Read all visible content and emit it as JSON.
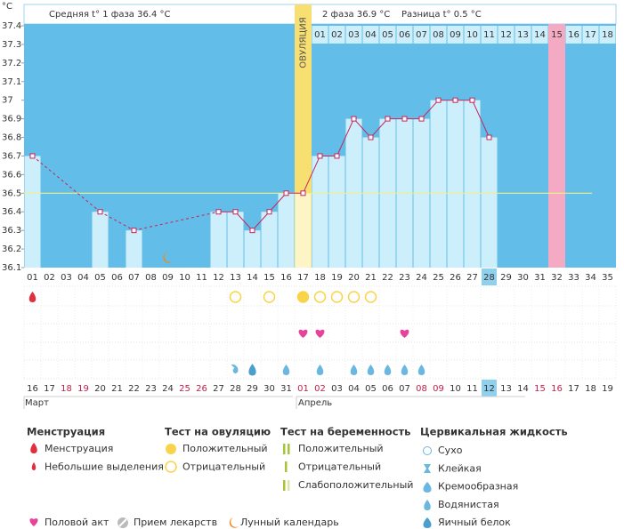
{
  "chart_data": {
    "type": "line",
    "y_unit": "°C",
    "summary": [
      "Средняя t° 1 фаза 36.4 °C",
      "2 фаза 36.9 °C",
      "Разница t° 0.5 °C"
    ],
    "ovulation_label": "ОВУЛЯЦИЯ",
    "categories": [
      "01",
      "02",
      "03",
      "04",
      "05",
      "06",
      "07",
      "08",
      "09",
      "10",
      "11",
      "12",
      "13",
      "14",
      "15",
      "16",
      "17",
      "18",
      "19",
      "20",
      "21",
      "22",
      "23",
      "24",
      "25",
      "26",
      "27",
      "28",
      "29",
      "30",
      "31",
      "32",
      "33",
      "34",
      "35"
    ],
    "phase2_days": [
      "01",
      "02",
      "03",
      "04",
      "05",
      "06",
      "07",
      "08",
      "09",
      "10",
      "11",
      "12",
      "13",
      "14",
      "15",
      "16",
      "17",
      "18"
    ],
    "dates": [
      "16",
      "17",
      "18",
      "19",
      "20",
      "21",
      "22",
      "23",
      "24",
      "25",
      "26",
      "27",
      "28",
      "29",
      "30",
      "31",
      "01",
      "02",
      "03",
      "04",
      "05",
      "06",
      "07",
      "08",
      "09",
      "10",
      "11",
      "12",
      "13",
      "14",
      "15",
      "16",
      "17",
      "18",
      "19"
    ],
    "weekend": [
      false,
      false,
      true,
      true,
      false,
      false,
      false,
      false,
      false,
      true,
      true,
      false,
      false,
      false,
      false,
      false,
      true,
      true,
      false,
      false,
      false,
      false,
      false,
      true,
      true,
      false,
      false,
      false,
      false,
      false,
      true,
      true,
      false,
      false,
      false
    ],
    "months": [
      "Март",
      "Апрель"
    ],
    "values": [
      36.7,
      null,
      null,
      null,
      36.4,
      null,
      36.3,
      null,
      null,
      null,
      null,
      36.4,
      36.4,
      36.3,
      36.4,
      36.5,
      36.5,
      36.7,
      36.7,
      36.9,
      36.8,
      36.9,
      36.9,
      36.9,
      37.0,
      37.0,
      37.0,
      36.8,
      null,
      null,
      null,
      null,
      null,
      null,
      null
    ],
    "color": "#c8245a",
    "coverline": 36.5,
    "ylim": [
      36.1,
      37.4
    ],
    "yticks": [
      36.1,
      36.2,
      36.3,
      36.4,
      36.5,
      36.6,
      36.7,
      36.8,
      36.9,
      37,
      37.1,
      37.2,
      37.3,
      37.4
    ],
    "day_marks": [
      null,
      null,
      null,
      null,
      null,
      null,
      null,
      null,
      "moon",
      null,
      null,
      null,
      null,
      null,
      null,
      null,
      "ovulation",
      null,
      null,
      null,
      null,
      null,
      null,
      null,
      null,
      null,
      null,
      null,
      null,
      null,
      null,
      "period",
      null,
      null,
      null
    ],
    "selected_day": "28",
    "selected_date": "12",
    "bleeding": [
      "heavy",
      null,
      null,
      null,
      null,
      null,
      null,
      null,
      null,
      null,
      null,
      null,
      null,
      null,
      null,
      null,
      null,
      null,
      null,
      null,
      null,
      null,
      null,
      null,
      null,
      null,
      null,
      null,
      null,
      null,
      null,
      null,
      null,
      null,
      null
    ],
    "ovulation_tests": [
      null,
      null,
      null,
      null,
      null,
      null,
      null,
      null,
      null,
      null,
      null,
      null,
      "negative",
      null,
      "negative",
      null,
      "positive",
      "negative",
      "negative",
      "negative",
      "negative",
      null,
      null,
      null,
      null,
      null,
      null,
      null,
      null,
      null,
      null,
      null,
      null,
      null,
      null
    ],
    "intercourse": [
      null,
      null,
      null,
      null,
      null,
      null,
      null,
      null,
      null,
      null,
      null,
      null,
      null,
      null,
      null,
      null,
      true,
      true,
      null,
      null,
      null,
      null,
      true,
      null,
      null,
      null,
      null,
      null,
      null,
      null,
      null,
      null,
      null,
      null,
      null
    ],
    "cervical_fluid": [
      null,
      null,
      null,
      null,
      null,
      null,
      null,
      null,
      null,
      null,
      null,
      null,
      "creamy",
      "eggwhite",
      null,
      "watery",
      null,
      "watery",
      null,
      "watery",
      "watery",
      "watery",
      "watery",
      "watery",
      null,
      null,
      null,
      null,
      null,
      null,
      null,
      null,
      null,
      null,
      null
    ],
    "legend": {
      "groups": [
        {
          "title": "Менструация",
          "items": [
            "Менструация",
            "Небольшие выделения"
          ]
        },
        {
          "title": "Тест на овуляцию",
          "items": [
            "Положительный",
            "Отрицательный"
          ]
        },
        {
          "title": "Тест на беременность",
          "items": [
            "Положительный",
            "Отрицательный",
            "Слабоположительный"
          ]
        },
        {
          "title": "Цервикальная жидкость",
          "items": [
            "Сухо",
            "Клейкая",
            "Кремообразная",
            "Водянистая",
            "Яичный белок"
          ]
        }
      ],
      "extras": [
        "Половой акт",
        "Прием лекарств",
        "Лунный календарь"
      ]
    }
  }
}
